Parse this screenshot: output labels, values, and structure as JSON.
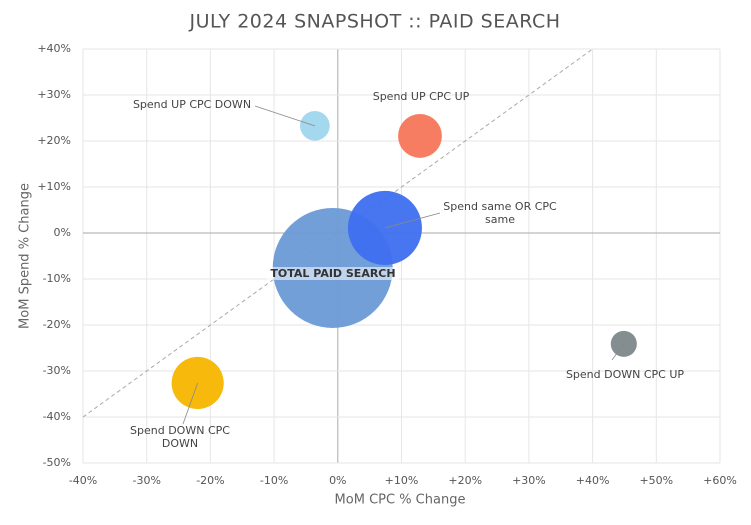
{
  "chart_data": {
    "type": "bubble",
    "title": "JULY 2024 SNAPSHOT :: PAID SEARCH",
    "x_label": "MoM CPC % Change",
    "y_label": "MoM Spend % Change",
    "xlim": [
      -40,
      60
    ],
    "xticks": [
      {
        "value": -40,
        "label": "-40%"
      },
      {
        "value": -30,
        "label": "-30%"
      },
      {
        "value": -20,
        "label": "-20%"
      },
      {
        "value": -10,
        "label": "-10%"
      },
      {
        "value": 0,
        "label": "0%"
      },
      {
        "value": 10,
        "label": "+10%"
      },
      {
        "value": 20,
        "label": "+20%"
      },
      {
        "value": 30,
        "label": "+30%"
      },
      {
        "value": 40,
        "label": "+40%"
      },
      {
        "value": 50,
        "label": "+50%"
      },
      {
        "value": 60,
        "label": "+60%"
      }
    ],
    "ylim": [
      -50,
      40
    ],
    "yticks": [
      {
        "value": -50,
        "label": "-50%"
      },
      {
        "value": -40,
        "label": "-40%"
      },
      {
        "value": -30,
        "label": "-30%"
      },
      {
        "value": -20,
        "label": "-20%"
      },
      {
        "value": -10,
        "label": "-10%"
      },
      {
        "value": 0,
        "label": "0%"
      },
      {
        "value": 10,
        "label": "+10%"
      },
      {
        "value": 20,
        "label": "+20%"
      },
      {
        "value": 30,
        "label": "+30%"
      },
      {
        "value": 40,
        "label": "+40%"
      }
    ],
    "grid": true,
    "points": [
      {
        "label": "TOTAL PAID SEARCH",
        "x": -0.8,
        "y": -7.6,
        "size": 36,
        "color": "#6b9ad6"
      },
      {
        "label": "Spend UP CPC DOWN",
        "x": -3.6,
        "y": 23.3,
        "size": 2.2,
        "color": "#9fd6ee"
      },
      {
        "label": "Spend UP CPC UP",
        "x": 12.9,
        "y": 21.1,
        "size": 4.8,
        "color": "#f6765a"
      },
      {
        "label": "Spend same OR CPC same",
        "x": 7.4,
        "y": 1.1,
        "size": 13.7,
        "color": "#3e6ff0"
      },
      {
        "label": "Spend DOWN CPC UP",
        "x": 44.9,
        "y": -24.1,
        "size": 1.7,
        "color": "#7d8789"
      },
      {
        "label": "Spend DOWN CPC DOWN",
        "x": -22,
        "y": -32.6,
        "size": 6.8,
        "color": "#f8b500"
      }
    ]
  }
}
